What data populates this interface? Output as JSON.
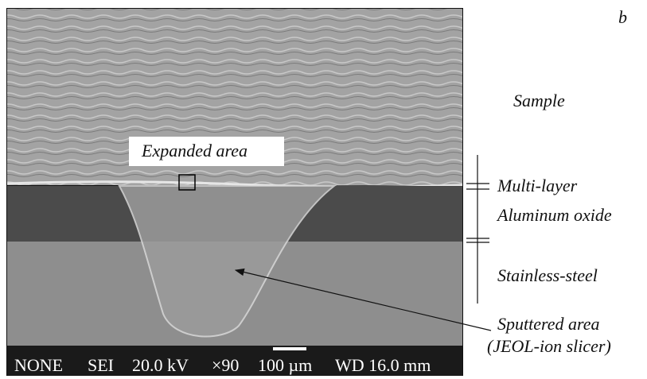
{
  "figure": {
    "panel_label": "b",
    "labels": {
      "sample": "Sample",
      "expanded_area": "Expanded area",
      "multi_layer": "Multi-layer",
      "aluminum_oxide": "Aluminum oxide",
      "stainless_steel": "Stainless-steel",
      "sputtered_area": "Sputtered area",
      "sputtered_area_note": "(JEOL-ion slicer)"
    },
    "info_bar": [
      "NONE",
      "SEI",
      "20.0 kV",
      "×90",
      "100 µm",
      "WD 16.0 mm"
    ]
  }
}
